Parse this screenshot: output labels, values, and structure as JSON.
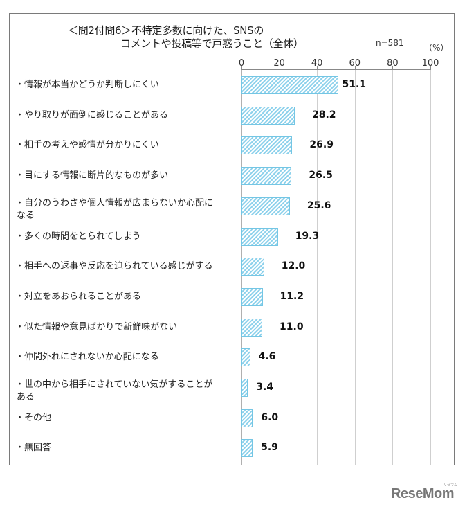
{
  "title": {
    "line1": "＜問2付問6＞不特定多数に向けた、SNSの",
    "line2": "コメントや投稿等で戸惑うこと（全体）"
  },
  "sample_size": "n=581",
  "unit": "（%）",
  "axis": {
    "ticks": [
      "0",
      "20",
      "40",
      "60",
      "80",
      "100"
    ]
  },
  "logo": {
    "text": "ReseMom",
    "ruby": "リセマム"
  },
  "chart_data": {
    "type": "bar",
    "orientation": "horizontal",
    "title": "＜問2付問6＞不特定多数に向けた、SNSのコメントや投稿等で戸惑うこと（全体）",
    "subtitle": "n=581",
    "xlabel": "(%)",
    "ylabel": "",
    "xlim": [
      0,
      100
    ],
    "x_ticks": [
      0,
      20,
      40,
      60,
      80,
      100
    ],
    "grid": true,
    "legend": null,
    "bar_color": "#74c6e4",
    "bar_pattern": "diagonal-hatch",
    "categories": [
      "・情報が本当かどうか判断しにくい",
      "・やり取りが面倒に感じることがある",
      "・相手の考えや感情が分かりにくい",
      "・目にする情報に断片的なものが多い",
      "・自分のうわさや個人情報が広まらないか心配になる",
      "・多くの時間をとられてしまう",
      "・相手への返事や反応を迫られている感じがする",
      "・対立をあおられることがある",
      "・似た情報や意見ばかりで新鮮味がない",
      "・仲間外れにされないか心配になる",
      "・世の中から相手にされていない気がすることがある",
      "・その他",
      "・無回答"
    ],
    "values": [
      51.1,
      28.2,
      26.9,
      26.5,
      25.6,
      19.3,
      12.0,
      11.2,
      11.0,
      4.6,
      3.4,
      6.0,
      5.9
    ],
    "value_labels": [
      "51.1",
      "28.2",
      "26.9",
      "26.5",
      "25.6",
      "19.3",
      "12.0",
      "11.2",
      "11.0",
      "4.6",
      "3.4",
      "6.0",
      "5.9"
    ],
    "category_display": [
      [
        "・情報が本当かどうか判断しにくい"
      ],
      [
        "・やり取りが面倒に感じることがある"
      ],
      [
        "・相手の考えや感情が分かりにくい"
      ],
      [
        "・目にする情報に断片的なものが多い"
      ],
      [
        "・自分のうわさや個人情報が広まらないか心配に",
        "なる"
      ],
      [
        "・多くの時間をとられてしまう"
      ],
      [
        "・相手への返事や反応を迫られている感じがする"
      ],
      [
        "・対立をあおられることがある"
      ],
      [
        "・似た情報や意見ばかりで新鮮味がない"
      ],
      [
        "・仲間外れにされないか心配になる"
      ],
      [
        "・世の中から相手にされていない気がすることが",
        "ある"
      ],
      [
        "・その他"
      ],
      [
        "・無回答"
      ]
    ]
  }
}
